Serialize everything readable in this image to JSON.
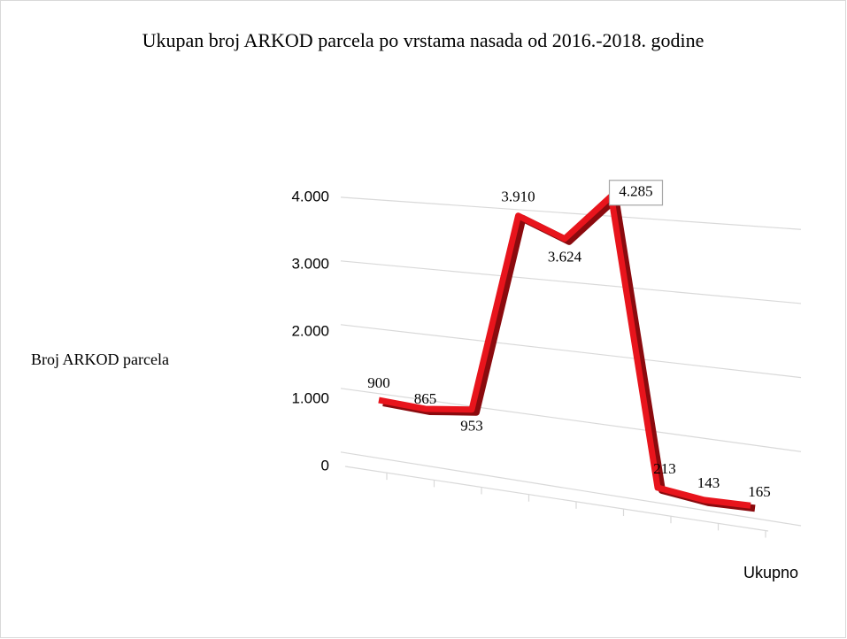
{
  "chart_data": {
    "type": "line",
    "title": "Ukupan broj ARKOD parcela po vrstama nasada od 2016.-2018. godine",
    "y_label": "Broj ARKOD parcela",
    "x_label": "Ukupno",
    "categories": [
      null,
      null,
      null,
      null,
      null,
      null,
      null,
      null,
      null
    ],
    "series": [
      {
        "name": "Ukupno",
        "color": "#e8141c",
        "values": [
          900,
          865,
          953,
          3910,
          3624,
          4285,
          213,
          143,
          165
        ],
        "value_labels": [
          "900",
          "865",
          "953",
          "3.910",
          "3.624",
          "4.285",
          "213",
          "143",
          "165"
        ]
      }
    ],
    "ylim": [
      0,
      4000
    ],
    "yticks": [
      0,
      {
        "value": 1000,
        "label": "1.000"
      },
      {
        "value": 2000,
        "label": "2.000"
      },
      {
        "value": 3000,
        "label": "3.000"
      },
      {
        "value": 4000,
        "label": "4.000"
      }
    ],
    "grid": true
  }
}
